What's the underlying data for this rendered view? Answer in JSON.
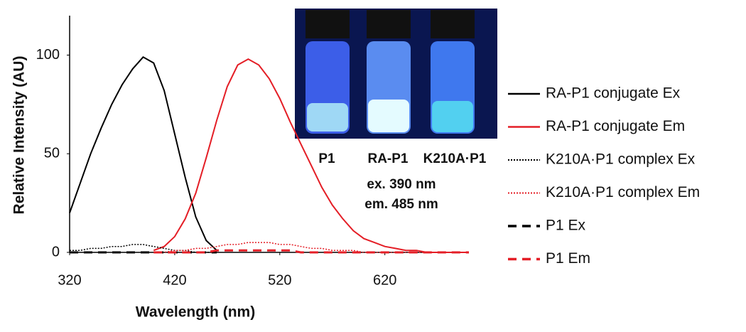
{
  "chart_data": {
    "type": "line",
    "x_label": "Wavelength (nm)",
    "y_label": "Relative Intensity (AU)",
    "x": [
      320,
      330,
      340,
      350,
      360,
      370,
      380,
      390,
      400,
      410,
      420,
      430,
      440,
      450,
      460,
      470,
      480,
      490,
      500,
      510,
      520,
      530,
      540,
      550,
      560,
      570,
      580,
      590,
      600,
      610,
      620,
      630,
      640,
      650,
      660,
      670,
      680,
      690,
      700
    ],
    "series": [
      {
        "name": "RA-P1 conjugate Ex",
        "color": "#000000",
        "style": "solid",
        "values": [
          20,
          35,
          50,
          63,
          75,
          85,
          93,
          99,
          96,
          82,
          60,
          38,
          18,
          6,
          1,
          null,
          null,
          null,
          null,
          null,
          null,
          null,
          null,
          null,
          null,
          null,
          null,
          null,
          null,
          null,
          null,
          null,
          null,
          null,
          null,
          null,
          null,
          null,
          null
        ]
      },
      {
        "name": "RA-P1 conjugate Em",
        "color": "#e41e26",
        "style": "solid",
        "values": [
          null,
          null,
          null,
          null,
          null,
          null,
          null,
          null,
          1,
          3,
          8,
          17,
          30,
          48,
          67,
          84,
          95,
          98,
          95,
          88,
          78,
          66,
          55,
          44,
          33,
          24,
          17,
          11,
          7,
          5,
          3,
          2,
          1,
          1,
          0,
          0,
          0,
          0,
          0
        ]
      },
      {
        "name": "K210A·P1 complex Ex",
        "color": "#000000",
        "style": "dotted",
        "values": [
          1,
          1,
          2,
          2,
          3,
          3,
          4,
          4,
          3,
          2,
          1,
          1,
          0,
          0,
          0,
          null,
          null,
          null,
          null,
          null,
          null,
          null,
          null,
          null,
          null,
          null,
          null,
          null,
          null,
          null,
          null,
          null,
          null,
          null,
          null,
          null,
          null,
          null,
          null
        ]
      },
      {
        "name": "K210A·P1 complex Em",
        "color": "#e41e26",
        "style": "dotted",
        "values": [
          null,
          null,
          null,
          null,
          null,
          null,
          null,
          null,
          0,
          0,
          1,
          1,
          2,
          2,
          3,
          4,
          4,
          5,
          5,
          5,
          4,
          4,
          3,
          2,
          2,
          1,
          1,
          1,
          0,
          0,
          0,
          0,
          0,
          0,
          0,
          0,
          0,
          0,
          0
        ]
      },
      {
        "name": "P1 Ex",
        "color": "#000000",
        "style": "dashed",
        "values": [
          0,
          0,
          0,
          0,
          0,
          0,
          0,
          0,
          0,
          0,
          0,
          0,
          0,
          0,
          0,
          null,
          null,
          null,
          null,
          null,
          null,
          null,
          null,
          null,
          null,
          null,
          null,
          null,
          null,
          null,
          null,
          null,
          null,
          null,
          null,
          null,
          null,
          null,
          null
        ]
      },
      {
        "name": "P1 Em",
        "color": "#e41e26",
        "style": "dashed",
        "values": [
          null,
          null,
          null,
          null,
          null,
          null,
          null,
          null,
          0,
          0,
          0,
          0,
          0,
          0,
          1,
          1,
          1,
          1,
          1,
          1,
          1,
          1,
          0,
          0,
          0,
          0,
          0,
          0,
          0,
          0,
          0,
          0,
          0,
          0,
          0,
          0,
          0,
          0,
          0
        ]
      }
    ],
    "xlim": [
      320,
      700
    ],
    "xticks": [
      320,
      420,
      520,
      620
    ],
    "ylim": [
      0,
      120
    ],
    "yticks": [
      0,
      50,
      100
    ],
    "inset_labels": [
      "P1",
      "RA-P1",
      "K210A·P1"
    ],
    "annotations": [
      "ex. 390 nm",
      "em. 485 nm"
    ]
  }
}
